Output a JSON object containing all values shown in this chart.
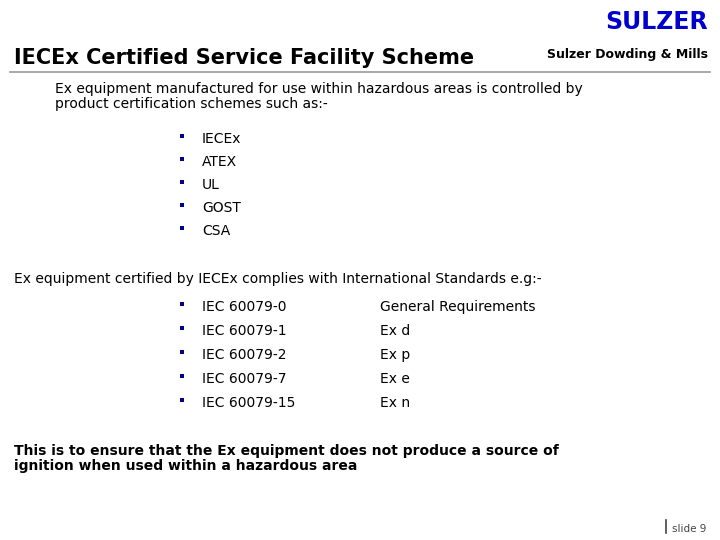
{
  "title": "IECEx Certified Service Facility Scheme",
  "subtitle": "Sulzer Dowding & Mills",
  "sulzer_text": "SULZER",
  "bg_color": "#ffffff",
  "title_color": "#000000",
  "sulzer_color": "#0000cc",
  "subtitle_color": "#000000",
  "body_text_color": "#000000",
  "bullet_color": "#00008B",
  "slide_number": "slide 9",
  "para1_line1": "Ex equipment manufactured for use within hazardous areas is controlled by",
  "para1_line2": "product certification schemes such as:-",
  "bullets1": [
    "IECEx",
    "ATEX",
    "UL",
    "GOST",
    "CSA"
  ],
  "para2": "Ex equipment certified by IECEx complies with International Standards e.g:-",
  "bullets2_left": [
    "IEC 60079-0",
    "IEC 60079-1",
    "IEC 60079-2",
    "IEC 60079-7",
    "IEC 60079-15"
  ],
  "bullets2_right": [
    "General Requirements",
    "Ex d",
    "Ex p",
    "Ex e",
    "Ex n"
  ],
  "para3_line1": "This is to ensure that the Ex equipment does not produce a source of",
  "para3_line2": "ignition when used within a hazardous area"
}
